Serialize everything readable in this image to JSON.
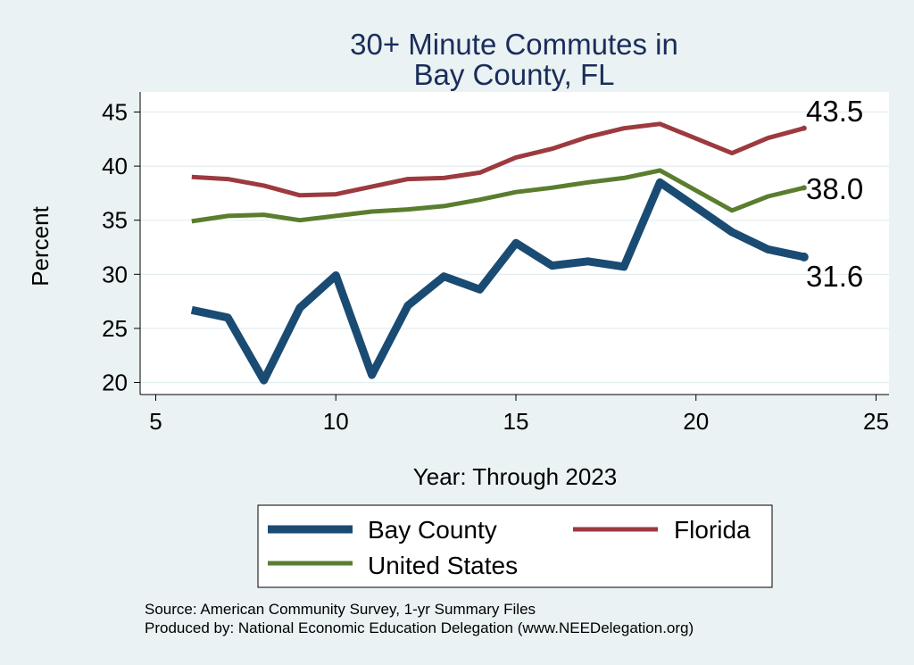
{
  "chart_data": {
    "type": "line",
    "title": [
      "30+ Minute Commutes in",
      "Bay County, FL"
    ],
    "xlabel": "Year: Through 2023",
    "ylabel": "Percent",
    "xlim": [
      5,
      25
    ],
    "ylim": [
      19,
      46
    ],
    "x_ticks": [
      "5",
      "10",
      "15",
      "20",
      "25"
    ],
    "y_ticks": [
      "20",
      "25",
      "30",
      "35",
      "40",
      "45"
    ],
    "grid": true,
    "legend_placement": "bottom",
    "series": [
      {
        "name": "Bay County",
        "color": "#1a4b73",
        "x": [
          6,
          7,
          8,
          9,
          10,
          11,
          12,
          13,
          14,
          15,
          16,
          17,
          18,
          19,
          21,
          22,
          23
        ],
        "values": [
          26.7,
          26.0,
          20.2,
          26.9,
          29.9,
          20.7,
          27.1,
          29.8,
          28.6,
          32.9,
          30.8,
          31.2,
          30.7,
          38.5,
          33.9,
          32.3,
          31.6
        ],
        "end_label": "31.6"
      },
      {
        "name": "Florida",
        "color": "#9c3a3f",
        "x": [
          6,
          7,
          8,
          9,
          10,
          11,
          12,
          13,
          14,
          15,
          16,
          17,
          18,
          19,
          21,
          22,
          23
        ],
        "values": [
          39.0,
          38.8,
          38.2,
          37.3,
          37.4,
          38.1,
          38.8,
          38.9,
          39.4,
          40.8,
          41.6,
          42.7,
          43.5,
          43.9,
          41.2,
          42.6,
          43.5
        ],
        "end_label": "43.5"
      },
      {
        "name": "United States",
        "color": "#5a7d2e",
        "x": [
          6,
          7,
          8,
          9,
          10,
          11,
          12,
          13,
          14,
          15,
          16,
          17,
          18,
          19,
          21,
          22,
          23
        ],
        "values": [
          34.9,
          35.4,
          35.5,
          35.0,
          35.4,
          35.8,
          36.0,
          36.3,
          36.9,
          37.6,
          38.0,
          38.5,
          38.9,
          39.6,
          35.9,
          37.2,
          38.0
        ],
        "end_label": "38.0"
      }
    ]
  },
  "source_lines": [
    "Source: American Community Survey, 1-yr Summary Files",
    "Produced by: National Economic Education Delegation (www.NEEDelegation.org)"
  ]
}
